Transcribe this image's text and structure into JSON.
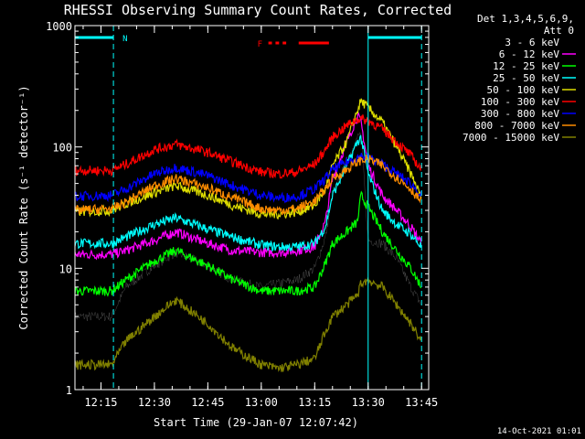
{
  "chart_data": {
    "type": "line",
    "title": "RHESSI Observing Summary Count Rates, Corrected",
    "xlabel": "Start Time (29-Jan-07 12:07:42)",
    "ylabel": "Corrected Count Rate (s⁻¹ detector⁻¹)",
    "y_scale": "log",
    "ylim": [
      1,
      1000
    ],
    "y_ticks": [
      {
        "value": 1,
        "label": "1"
      },
      {
        "value": 10,
        "label": "10"
      },
      {
        "value": 100,
        "label": "100"
      },
      {
        "value": 1000,
        "label": "1000"
      }
    ],
    "xlim": [
      "12:07:42",
      "13:47"
    ],
    "x_ticks": [
      "12:15",
      "12:30",
      "12:45",
      "13:00",
      "13:15",
      "13:30",
      "13:45"
    ],
    "legend_header": [
      "Det 1,3,4,5,6,9,",
      "Att 0"
    ],
    "legend_position": "right",
    "footer_date": "14-Oct-2021 01:01",
    "annotations": {
      "night_flag": "N",
      "flare_flag": "F",
      "night_color": "#00ffff",
      "flare_color": "#ff0000",
      "night_bars": [
        [
          "12:07:42",
          "12:18:30"
        ],
        [
          "13:30:00",
          "13:45:00"
        ]
      ],
      "night_dashed_lines": [
        "12:18:30",
        "13:45:00"
      ],
      "night_solid_line": "13:30:00",
      "flare_bars": [
        [
          "13:10:30",
          "13:19:00"
        ]
      ],
      "flare_dashes": [
        [
          "13:02:00",
          "13:03:00"
        ],
        [
          "13:04:00",
          "13:05:00"
        ],
        [
          "13:06:00",
          "13:07:00"
        ]
      ]
    },
    "series": [
      {
        "name": "3 - 6 keV",
        "color": "#000000",
        "x": [
          "12:07",
          "12:18",
          "12:22",
          "12:30",
          "12:36",
          "12:45",
          "12:52",
          "13:00",
          "13:05",
          "13:10",
          "13:15",
          "13:18",
          "13:20",
          "13:24",
          "13:27",
          "13:28",
          "13:30",
          "13:34",
          "13:38",
          "13:42",
          "13:45"
        ],
        "y": [
          4,
          4,
          7,
          10.5,
          13.5,
          10.5,
          8,
          7,
          7.5,
          8,
          10,
          18,
          40,
          75,
          120,
          130,
          17,
          16,
          12,
          7,
          5
        ]
      },
      {
        "name": "6 - 12 keV",
        "color": "#ff00ff",
        "x": [
          "12:07",
          "12:18",
          "12:22",
          "12:30",
          "12:36",
          "12:45",
          "12:52",
          "13:00",
          "13:05",
          "13:10",
          "13:15",
          "13:18",
          "13:20",
          "13:24",
          "13:27",
          "13:28",
          "13:30",
          "13:34",
          "13:38",
          "13:42",
          "13:45"
        ],
        "y": [
          13,
          13,
          14,
          17,
          20,
          16,
          14,
          13.5,
          13.5,
          14,
          15,
          24,
          55,
          110,
          180,
          160,
          70,
          40,
          30,
          22,
          16
        ]
      },
      {
        "name": "12 - 25 keV",
        "color": "#00ff00",
        "x": [
          "12:07",
          "12:18",
          "12:22",
          "12:30",
          "12:36",
          "12:45",
          "12:52",
          "13:00",
          "13:05",
          "13:10",
          "13:15",
          "13:18",
          "13:20",
          "13:24",
          "13:27",
          "13:28",
          "13:30",
          "13:34",
          "13:38",
          "13:42",
          "13:45"
        ],
        "y": [
          6.5,
          6.5,
          8,
          11.5,
          14,
          10.5,
          8,
          6.5,
          6.5,
          6.5,
          7,
          11,
          16,
          20,
          24,
          40,
          32,
          20,
          14,
          10,
          7
        ]
      },
      {
        "name": "25 - 50 keV",
        "color": "#00ffff",
        "x": [
          "12:07",
          "12:18",
          "12:22",
          "12:30",
          "12:36",
          "12:45",
          "12:52",
          "13:00",
          "13:05",
          "13:10",
          "13:15",
          "13:18",
          "13:20",
          "13:24",
          "13:27",
          "13:28",
          "13:30",
          "13:34",
          "13:38",
          "13:42",
          "13:45"
        ],
        "y": [
          16,
          16,
          18,
          23,
          26,
          21,
          18,
          15.5,
          15,
          15,
          16,
          22,
          40,
          70,
          110,
          120,
          60,
          30,
          23,
          19,
          15
        ]
      },
      {
        "name": "50 - 100 keV",
        "color": "#dddd00",
        "x": [
          "12:07",
          "12:18",
          "12:22",
          "12:30",
          "12:36",
          "12:45",
          "12:52",
          "13:00",
          "13:05",
          "13:10",
          "13:15",
          "13:18",
          "13:20",
          "13:24",
          "13:27",
          "13:28",
          "13:30",
          "13:34",
          "13:38",
          "13:42",
          "13:45"
        ],
        "y": [
          29,
          30,
          34,
          42,
          48,
          40,
          33,
          28,
          28,
          29,
          33,
          45,
          70,
          110,
          200,
          240,
          210,
          160,
          100,
          60,
          38
        ]
      },
      {
        "name": "100 - 300 keV",
        "color": "#ff0000",
        "x": [
          "12:07",
          "12:18",
          "12:22",
          "12:30",
          "12:36",
          "12:45",
          "12:52",
          "13:00",
          "13:05",
          "13:10",
          "13:15",
          "13:18",
          "13:20",
          "13:24",
          "13:27",
          "13:28",
          "13:30",
          "13:34",
          "13:38",
          "13:42",
          "13:45"
        ],
        "y": [
          64,
          64,
          72,
          95,
          105,
          90,
          75,
          62,
          60,
          62,
          72,
          95,
          120,
          150,
          170,
          170,
          165,
          140,
          110,
          85,
          65
        ]
      },
      {
        "name": "300 - 800 keV",
        "color": "#0000ff",
        "x": [
          "12:07",
          "12:18",
          "12:22",
          "12:30",
          "12:36",
          "12:45",
          "12:52",
          "13:00",
          "13:05",
          "13:10",
          "13:15",
          "13:18",
          "13:20",
          "13:24",
          "13:27",
          "13:28",
          "13:30",
          "13:34",
          "13:38",
          "13:42",
          "13:45"
        ],
        "y": [
          39,
          40,
          45,
          60,
          68,
          58,
          48,
          40,
          38,
          39,
          45,
          55,
          65,
          75,
          82,
          84,
          82,
          72,
          60,
          50,
          40
        ]
      },
      {
        "name": "800 - 7000 keV",
        "color": "#ff8c00",
        "x": [
          "12:07",
          "12:18",
          "12:22",
          "12:30",
          "12:36",
          "12:45",
          "12:52",
          "13:00",
          "13:05",
          "13:10",
          "13:15",
          "13:18",
          "13:20",
          "13:24",
          "13:27",
          "13:28",
          "13:30",
          "13:34",
          "13:38",
          "13:42",
          "13:45"
        ],
        "y": [
          30,
          31,
          35,
          48,
          55,
          46,
          38,
          31,
          30,
          31,
          36,
          45,
          55,
          65,
          75,
          78,
          80,
          70,
          56,
          45,
          35
        ]
      },
      {
        "name": "7000 - 15000 keV",
        "color": "#808000",
        "x": [
          "12:07",
          "12:18",
          "12:22",
          "12:30",
          "12:36",
          "12:45",
          "12:52",
          "13:00",
          "13:05",
          "13:10",
          "13:15",
          "13:18",
          "13:20",
          "13:24",
          "13:27",
          "13:28",
          "13:30",
          "13:34",
          "13:38",
          "13:42",
          "13:45"
        ],
        "y": [
          1.6,
          1.6,
          2.5,
          4,
          5.5,
          3.5,
          2.2,
          1.6,
          1.5,
          1.6,
          1.8,
          3,
          4,
          5,
          6,
          7.5,
          8,
          7,
          5,
          3.5,
          2.5
        ]
      }
    ]
  }
}
